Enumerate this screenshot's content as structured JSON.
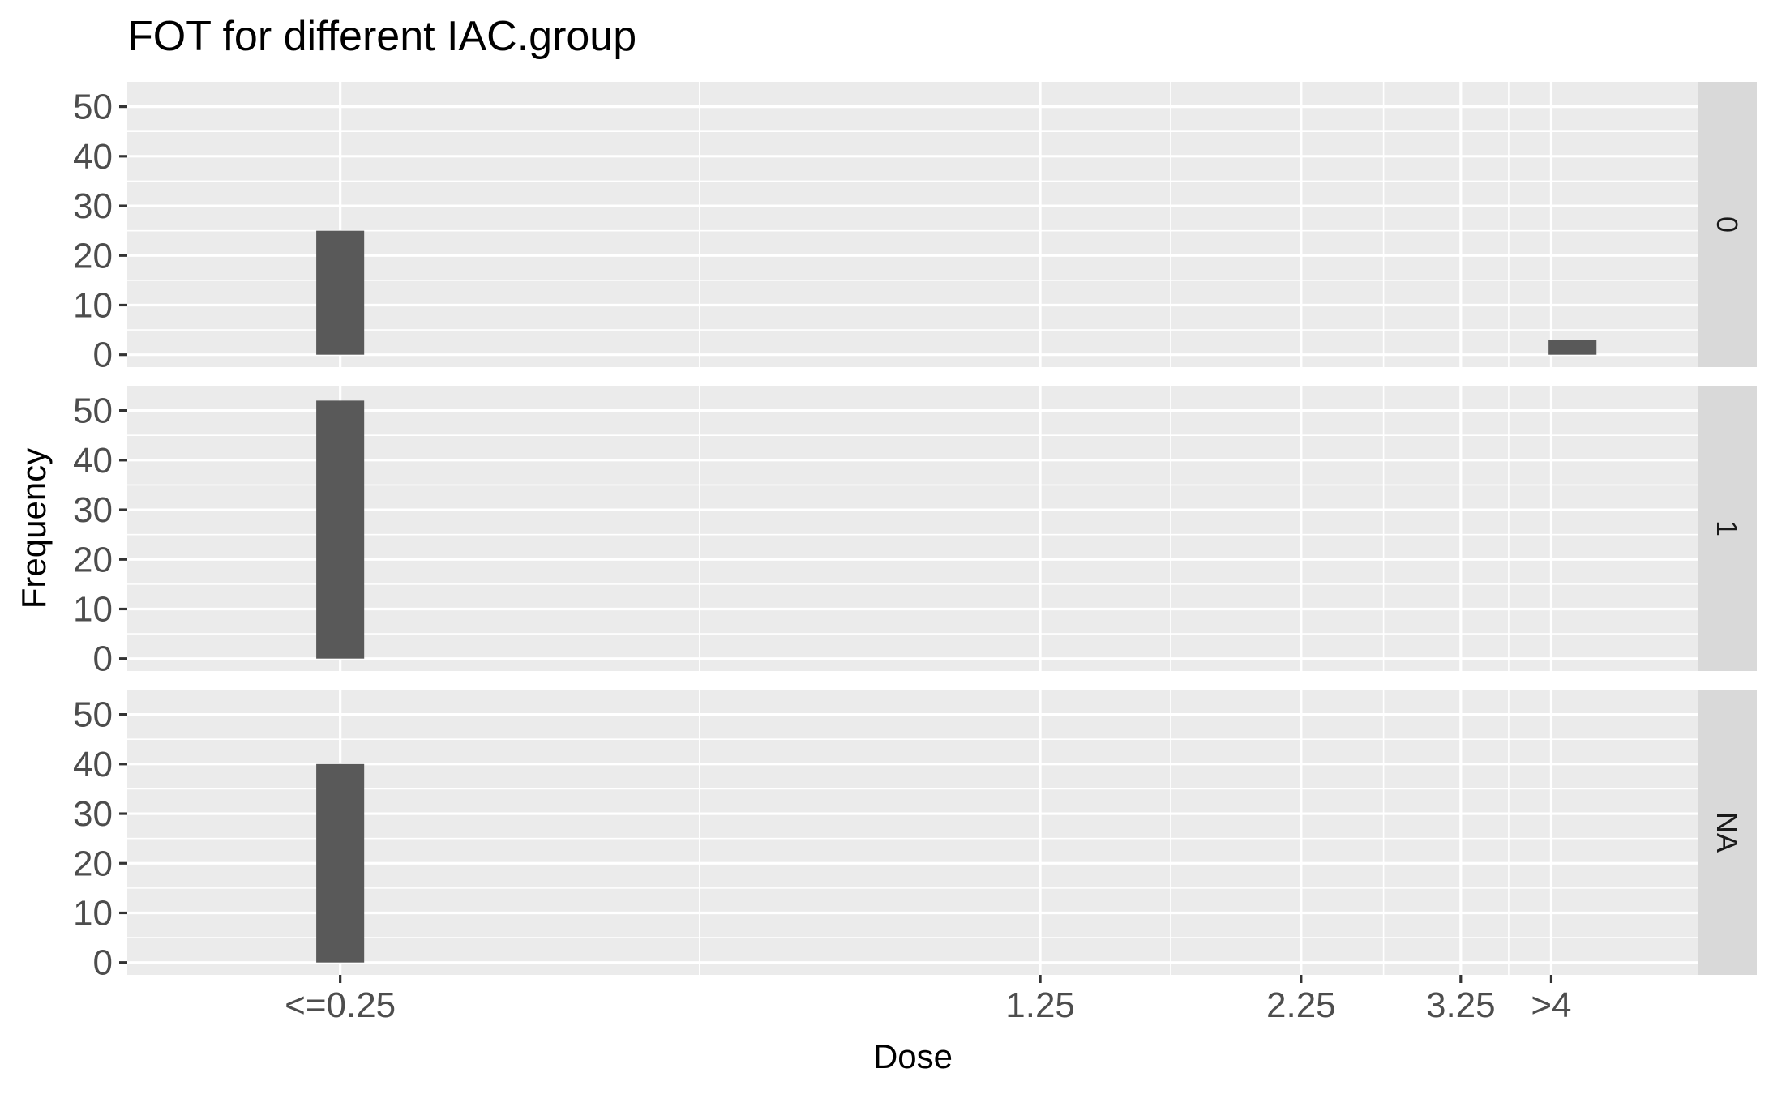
{
  "chart_data": {
    "type": "bar",
    "title": "FOT for different IAC.group",
    "xlabel": "Dose",
    "ylabel": "Frequency",
    "facet_var": "IAC.group",
    "x_domain": [
      -0.8,
      5.1
    ],
    "x_ticks": [
      {
        "value": 0.0,
        "label": "<=0.25"
      },
      {
        "value": 2.63,
        "label": "1.25"
      },
      {
        "value": 3.61,
        "label": "2.25"
      },
      {
        "value": 4.21,
        "label": "3.25"
      },
      {
        "value": 4.55,
        "label": ">4"
      }
    ],
    "x_minor_ticks": [
      1.35,
      3.12,
      3.92,
      4.39
    ],
    "ylim": [
      -2.5,
      55
    ],
    "y_ticks": [
      0,
      10,
      20,
      30,
      40,
      50
    ],
    "y_minor_ticks": [
      5,
      15,
      25,
      35,
      45
    ],
    "bar_width": 0.18,
    "panels": [
      {
        "label": "0",
        "bars": [
          {
            "x": 0.0,
            "value": 25
          },
          {
            "x": 4.63,
            "value": 3
          }
        ]
      },
      {
        "label": "1",
        "bars": [
          {
            "x": 0.0,
            "value": 52
          }
        ]
      },
      {
        "label": "NA",
        "bars": [
          {
            "x": 0.0,
            "value": 40
          }
        ]
      }
    ]
  }
}
